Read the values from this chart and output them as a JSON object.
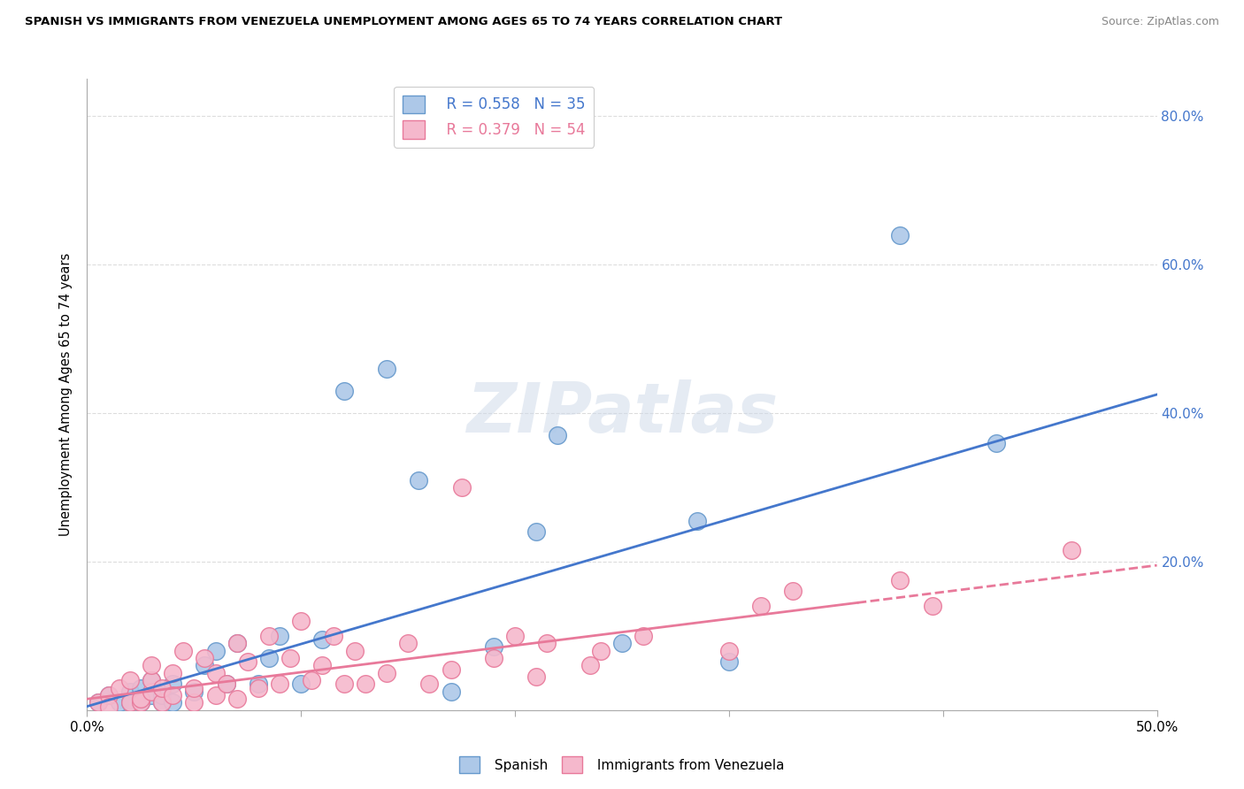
{
  "title": "SPANISH VS IMMIGRANTS FROM VENEZUELA UNEMPLOYMENT AMONG AGES 65 TO 74 YEARS CORRELATION CHART",
  "source": "Source: ZipAtlas.com",
  "ylabel": "Unemployment Among Ages 65 to 74 years",
  "xlim": [
    0.0,
    0.5
  ],
  "ylim": [
    0.0,
    0.85
  ],
  "xticks": [
    0.0,
    0.1,
    0.2,
    0.3,
    0.4,
    0.5
  ],
  "xticklabels_show": [
    "0.0%",
    "",
    "",
    "",
    "",
    "50.0%"
  ],
  "yticks": [
    0.0,
    0.2,
    0.4,
    0.6,
    0.8
  ],
  "yticklabels": [
    "",
    "20.0%",
    "40.0%",
    "60.0%",
    "80.0%"
  ],
  "blue_color": "#adc8e8",
  "blue_edge": "#6699cc",
  "pink_color": "#f5b8cc",
  "pink_edge": "#e8799a",
  "blue_line_color": "#4477cc",
  "pink_line_color": "#e8799a",
  "legend_blue_r": "R = 0.558",
  "legend_blue_n": "N = 35",
  "legend_pink_r": "R = 0.379",
  "legend_pink_n": "N = 54",
  "watermark": "ZIPatlas",
  "blue_scatter_x": [
    0.005,
    0.01,
    0.015,
    0.02,
    0.02,
    0.025,
    0.025,
    0.03,
    0.03,
    0.035,
    0.035,
    0.04,
    0.04,
    0.05,
    0.055,
    0.06,
    0.065,
    0.07,
    0.08,
    0.085,
    0.09,
    0.1,
    0.11,
    0.12,
    0.14,
    0.155,
    0.17,
    0.19,
    0.21,
    0.22,
    0.25,
    0.285,
    0.3,
    0.38,
    0.425
  ],
  "blue_scatter_y": [
    0.01,
    0.02,
    0.01,
    0.025,
    0.01,
    0.03,
    0.01,
    0.02,
    0.04,
    0.01,
    0.02,
    0.035,
    0.01,
    0.025,
    0.06,
    0.08,
    0.035,
    0.09,
    0.035,
    0.07,
    0.1,
    0.035,
    0.095,
    0.43,
    0.46,
    0.31,
    0.025,
    0.085,
    0.24,
    0.37,
    0.09,
    0.255,
    0.065,
    0.64,
    0.36
  ],
  "pink_scatter_x": [
    0.005,
    0.01,
    0.01,
    0.015,
    0.02,
    0.02,
    0.025,
    0.025,
    0.03,
    0.03,
    0.03,
    0.035,
    0.035,
    0.04,
    0.04,
    0.045,
    0.05,
    0.05,
    0.055,
    0.06,
    0.06,
    0.065,
    0.07,
    0.07,
    0.075,
    0.08,
    0.085,
    0.09,
    0.095,
    0.1,
    0.105,
    0.11,
    0.115,
    0.12,
    0.125,
    0.13,
    0.14,
    0.15,
    0.16,
    0.17,
    0.175,
    0.19,
    0.2,
    0.21,
    0.215,
    0.235,
    0.24,
    0.26,
    0.3,
    0.315,
    0.33,
    0.38,
    0.395,
    0.46
  ],
  "pink_scatter_y": [
    0.01,
    0.02,
    0.005,
    0.03,
    0.01,
    0.04,
    0.01,
    0.015,
    0.025,
    0.04,
    0.06,
    0.01,
    0.03,
    0.02,
    0.05,
    0.08,
    0.01,
    0.03,
    0.07,
    0.02,
    0.05,
    0.035,
    0.09,
    0.015,
    0.065,
    0.03,
    0.1,
    0.035,
    0.07,
    0.12,
    0.04,
    0.06,
    0.1,
    0.035,
    0.08,
    0.035,
    0.05,
    0.09,
    0.035,
    0.055,
    0.3,
    0.07,
    0.1,
    0.045,
    0.09,
    0.06,
    0.08,
    0.1,
    0.08,
    0.14,
    0.16,
    0.175,
    0.14,
    0.215
  ],
  "blue_line_x": [
    0.0,
    0.5
  ],
  "blue_line_y": [
    0.005,
    0.425
  ],
  "pink_line_x": [
    0.0,
    0.5
  ],
  "pink_line_y": [
    0.015,
    0.195
  ],
  "pink_line_dashed_start_x": 0.36,
  "grid_color": "#dddddd",
  "tick_color": "#aaaaaa",
  "spine_color": "#aaaaaa"
}
